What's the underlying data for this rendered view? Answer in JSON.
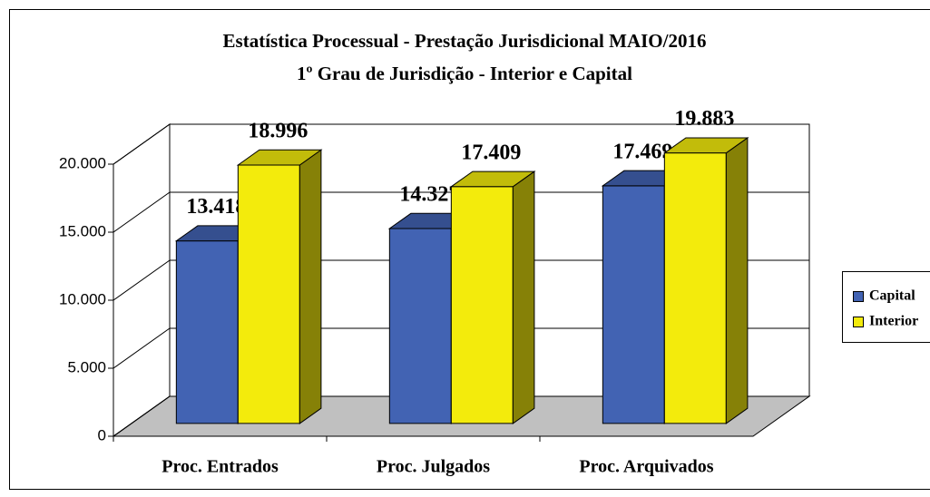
{
  "chart_data": {
    "type": "bar3d",
    "title": "Estatística Processual - Prestação Jurisdicional MAIO/2016",
    "subtitle": "1º Grau de Jurisdição - Interior e Capital",
    "categories": [
      "Proc. Entrados",
      "Proc. Julgados",
      "Proc. Arquivados"
    ],
    "series": [
      {
        "name": "Capital",
        "color": "#4263b3",
        "values": [
          13418,
          14327,
          17469
        ],
        "value_labels": [
          "13.418",
          "14.327",
          "17.469"
        ]
      },
      {
        "name": "Interior",
        "color": "#f3eb0c",
        "values": [
          18996,
          17409,
          19883
        ],
        "value_labels": [
          "18.996",
          "17.409",
          "19.883"
        ]
      }
    ],
    "ylim": [
      0,
      20000
    ],
    "yticks": [
      0,
      {
        "value": 5000,
        "label": "5.000"
      },
      {
        "value": 10000,
        "label": "10.000"
      },
      {
        "value": 15000,
        "label": "15.000"
      },
      {
        "value": 20000,
        "label": "20.000"
      }
    ],
    "grid": true,
    "legend": "right"
  }
}
